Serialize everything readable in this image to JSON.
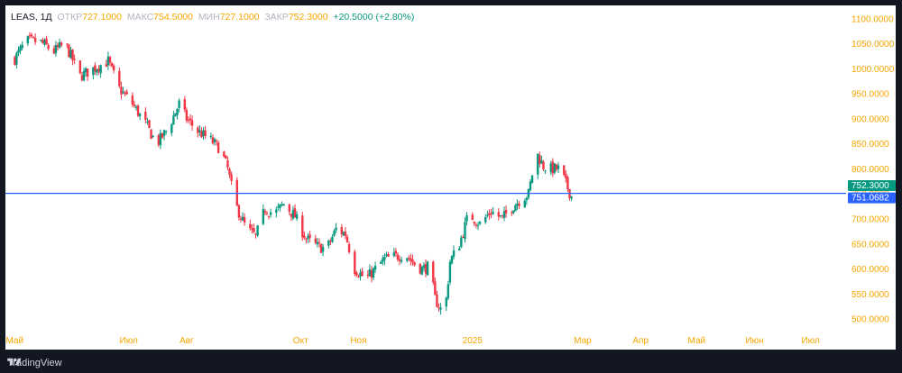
{
  "legend": {
    "symbol": "LEAS, 1Д",
    "open_label": "ОТКР",
    "open_value": "727.1000",
    "high_label": "МАКС",
    "high_value": "754.5000",
    "low_label": "МИН",
    "low_value": "727.1000",
    "close_label": "ЗАКР",
    "close_value": "752.3000",
    "change": "+20.5000 (+2.80%)"
  },
  "footer": {
    "brand": "TradingView"
  },
  "colors": {
    "up": "#089981",
    "down": "#f23645",
    "price_line": "#2962ff",
    "axis_text": "#f7a600",
    "date_text": "#f7a600"
  },
  "chart_data": {
    "type": "candlestick",
    "y_axis": {
      "min": 475,
      "max": 1105,
      "ticks": [
        "1100.0000",
        "1050.0000",
        "1000.0000",
        "950.0000",
        "900.0000",
        "850.0000",
        "800.0000",
        "750.0000",
        "700.0000",
        "650.0000",
        "600.0000",
        "550.0000",
        "500.0000"
      ]
    },
    "x_axis": {
      "labels": [
        {
          "label": "Май",
          "day": 0
        },
        {
          "label": "Июл",
          "day": 61
        },
        {
          "label": "Авг",
          "day": 92
        },
        {
          "label": "Окт",
          "day": 153
        },
        {
          "label": "Ноя",
          "day": 184
        },
        {
          "label": "2025",
          "day": 245
        },
        {
          "label": "Мар",
          "day": 304
        },
        {
          "label": "Апр",
          "day": 335
        },
        {
          "label": "Май",
          "day": 365
        },
        {
          "label": "Июн",
          "day": 396
        },
        {
          "label": "Июл",
          "day": 426
        }
      ]
    },
    "last_price": "752.3000",
    "price_line_value": "751.0682",
    "price_line_numeric": 751.07,
    "last_price_numeric": 752.3,
    "anchors": [
      [
        0,
        1020
      ],
      [
        6,
        1055
      ],
      [
        13,
        1055
      ],
      [
        21,
        1035
      ],
      [
        27,
        1050
      ],
      [
        35,
        985
      ],
      [
        42,
        1000
      ],
      [
        50,
        1015
      ],
      [
        56,
        960
      ],
      [
        63,
        930
      ],
      [
        70,
        890
      ],
      [
        76,
        850
      ],
      [
        82,
        880
      ],
      [
        88,
        930
      ],
      [
        92,
        900
      ],
      [
        98,
        875
      ],
      [
        104,
        860
      ],
      [
        110,
        840
      ],
      [
        114,
        800
      ],
      [
        118,
        730
      ],
      [
        124,
        680
      ],
      [
        129,
        665
      ],
      [
        134,
        720
      ],
      [
        139,
        710
      ],
      [
        144,
        730
      ],
      [
        150,
        705
      ],
      [
        156,
        660
      ],
      [
        162,
        645
      ],
      [
        167,
        640
      ],
      [
        172,
        680
      ],
      [
        177,
        670
      ],
      [
        182,
        600
      ],
      [
        188,
        580
      ],
      [
        193,
        600
      ],
      [
        198,
        620
      ],
      [
        204,
        625
      ],
      [
        209,
        630
      ],
      [
        214,
        610
      ],
      [
        218,
        600
      ],
      [
        222,
        605
      ],
      [
        225,
        540
      ],
      [
        228,
        520
      ],
      [
        231,
        540
      ],
      [
        233,
        615
      ],
      [
        238,
        650
      ],
      [
        243,
        710
      ],
      [
        249,
        690
      ],
      [
        255,
        715
      ],
      [
        261,
        700
      ],
      [
        265,
        720
      ],
      [
        271,
        740
      ],
      [
        275,
        750
      ],
      [
        277,
        790
      ],
      [
        279,
        835
      ],
      [
        283,
        805
      ],
      [
        287,
        800
      ],
      [
        292,
        800
      ],
      [
        295,
        770
      ],
      [
        298,
        745
      ],
      [
        300,
        752
      ]
    ]
  }
}
